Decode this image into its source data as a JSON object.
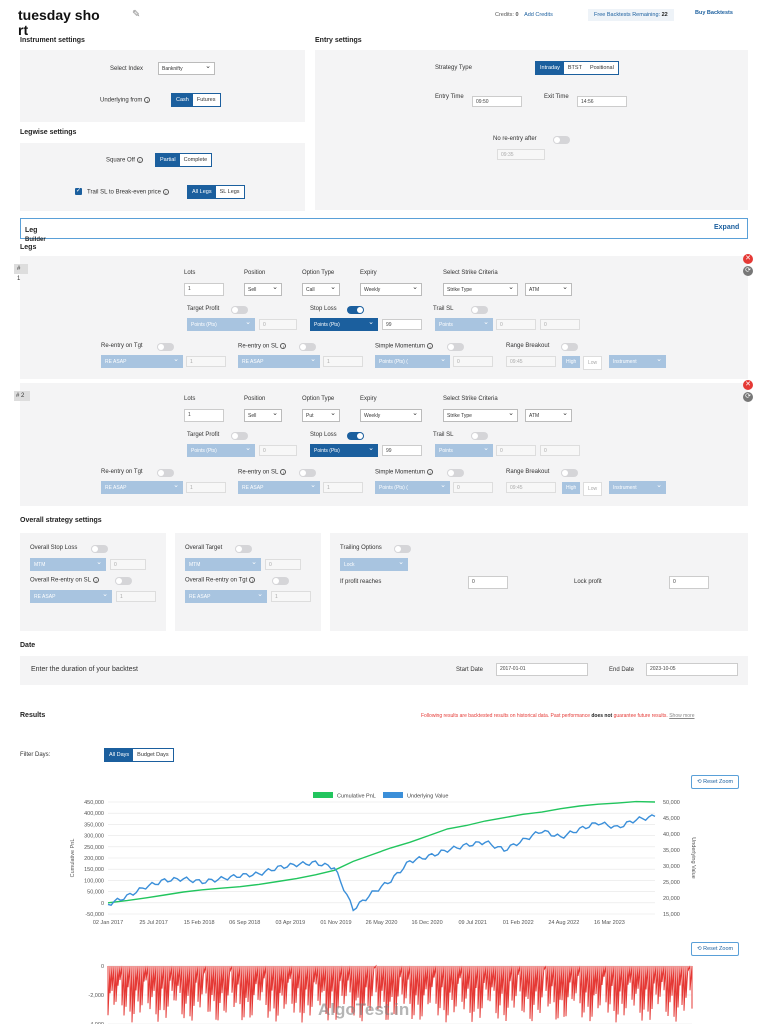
{
  "header": {
    "title_line1": "tuesday sho",
    "title_line2": "rt",
    "credits_label": "Credits:",
    "credits_value": "0",
    "add_credits": "Add Credits",
    "free_label": "Free Backtests Remaining:",
    "free_value": "22",
    "buy": "Buy Backtests"
  },
  "instrument": {
    "title": "Instrument settings",
    "index_label": "Select Index",
    "index_value": "Banknifty",
    "underlying_label": "Underlying from",
    "opt_cash": "Cash",
    "opt_futures": "Futures"
  },
  "entry": {
    "title": "Entry settings",
    "strategy_label": "Strategy Type",
    "opt_intraday": "Intraday",
    "opt_btst": "BTST",
    "opt_positional": "Positional",
    "entry_time_label": "Entry Time",
    "entry_time": "09:50",
    "exit_time_label": "Exit Time",
    "exit_time": "14:56",
    "no_reentry_label": "No re-entry after",
    "no_reentry_time": "09:35"
  },
  "legwise": {
    "title": "Legwise settings",
    "square_off_label": "Square Off",
    "opt_partial": "Partial",
    "opt_complete": "Complete",
    "trail_label": "Trail SL to Break-even price",
    "opt_all": "All Legs",
    "opt_sl": "SL Legs"
  },
  "leg_builder": {
    "title1": "Leg",
    "title2": "Builder",
    "expand": "Expand"
  },
  "legs_title": "Legs",
  "labels": {
    "lots": "Lots",
    "position": "Position",
    "option_type": "Option Type",
    "expiry": "Expiry",
    "strike": "Select Strike Criteria",
    "target_profit": "Target Profit",
    "stop_loss": "Stop Loss",
    "trail_sl": "Trail SL",
    "reentry_tgt": "Re-entry on Tgt",
    "reentry_sl": "Re-entry on SL",
    "simple_momentum": "Simple Momentum",
    "range_breakout": "Range Breakout",
    "points": "Points (Pts)",
    "points_short": "Points",
    "points_trunc": "Points (Pts) (",
    "re_asap": "RE ASAP",
    "high": "High",
    "low": "Low",
    "instrument": "Instrument"
  },
  "leg1": {
    "num": "#",
    "num2": "1",
    "lots": "1",
    "position": "Sell",
    "option": "Call",
    "expiry": "Weekly",
    "strike_type": "Strike Type",
    "atm": "ATM",
    "tp_val": "0",
    "sl_val": "99",
    "trail_a": "0",
    "trail_b": "0",
    "re_tgt_val": "1",
    "re_sl_val": "1",
    "mom_val": "0",
    "rb_time": "09:45"
  },
  "leg2": {
    "num": "# 2",
    "lots": "1",
    "position": "Sell",
    "option": "Put",
    "expiry": "Weekly",
    "strike_type": "Strike Type",
    "atm": "ATM",
    "tp_val": "0",
    "sl_val": "99",
    "trail_a": "0",
    "trail_b": "0",
    "re_tgt_val": "1",
    "re_sl_val": "1",
    "mom_val": "0",
    "rb_time": "09:45"
  },
  "overall": {
    "title": "Overall strategy settings",
    "stop_loss": "Overall Stop Loss",
    "mtm": "MTM",
    "sl_val": "0",
    "re_sl": "Overall Re-entry on SL",
    "re_asap": "RE ASAP",
    "re_sl_val": "1",
    "target": "Overall Target",
    "tgt_val": "0",
    "re_tgt": "Overall Re-entry on Tgt",
    "re_tgt_val": "1",
    "trailing": "Trailing Options",
    "lock": "Lock",
    "if_profit": "If profit reaches",
    "if_profit_val": "0",
    "lock_profit": "Lock profit",
    "lock_profit_val": "0"
  },
  "date": {
    "title": "Date",
    "prompt": "Enter the duration of your backtest",
    "start_label": "Start Date",
    "start": "2017-01-01",
    "end_label": "End Date",
    "end": "2023-10-05"
  },
  "results": {
    "title": "Results",
    "disclaimer_a": "Following results are backtested results on historical data. Past performance",
    "disclaimer_b": "does not",
    "disclaimer_c": "guarantee future results.",
    "show_more": "Show more",
    "filter_label": "Filter Days:",
    "all_days": "All Days",
    "budget_days": "Budget Days",
    "reset_zoom": "Reset Zoom",
    "watermark": "AlgoTest.in"
  },
  "chart_data": [
    {
      "type": "line",
      "legend": [
        "Cumulative PnL",
        "Underlying Value"
      ],
      "ylabel": "Cumulative PnL",
      "y2label": "Underlying Value",
      "x_ticks": [
        "02 Jan 2017",
        "25 Jul 2017",
        "15 Feb 2018",
        "06 Sep 2018",
        "03 Apr 2019",
        "01 Nov 2019",
        "26 May 2020",
        "16 Dec 2020",
        "09 Jul 2021",
        "01 Feb 2022",
        "24 Aug 2022",
        "16 Mar 2023"
      ],
      "y_ticks": [
        "450,000",
        "400,000",
        "350,000",
        "300,000",
        "250,000",
        "200,000",
        "150,000",
        "100,000",
        "50,000",
        "0",
        "-50,000"
      ],
      "y2_ticks": [
        "50,000",
        "45,000",
        "40,000",
        "35,000",
        "30,000",
        "25,000",
        "20,000",
        "15,000"
      ],
      "ylim": [
        -50000,
        450000
      ],
      "y2lim": [
        15000,
        50000
      ],
      "series": [
        {
          "name": "Cumulative PnL",
          "color": "#22c55e",
          "values": [
            0,
            10000,
            22000,
            35000,
            48000,
            58000,
            65000,
            72000,
            82000,
            95000,
            108000,
            125000,
            145000,
            185000,
            215000,
            245000,
            270000,
            300000,
            330000,
            345000,
            365000,
            380000,
            395000,
            405000,
            420000,
            432000,
            440000,
            445000,
            452000,
            450000
          ]
        },
        {
          "name": "Underlying Value",
          "color": "#3b8fd9",
          "values": [
            18000,
            20500,
            23500,
            25500,
            26000,
            25000,
            26000,
            27000,
            27500,
            29500,
            30500,
            31000,
            29500,
            16500,
            21500,
            25500,
            31500,
            33000,
            35000,
            36500,
            37500,
            35000,
            38000,
            41000,
            39000,
            41500,
            43500,
            42000,
            44500,
            45500
          ]
        }
      ]
    },
    {
      "type": "bar",
      "y_ticks": [
        "0",
        "-2,000",
        "-4,000"
      ],
      "ylim": [
        -5000,
        0
      ],
      "color": "#e53935"
    }
  ]
}
